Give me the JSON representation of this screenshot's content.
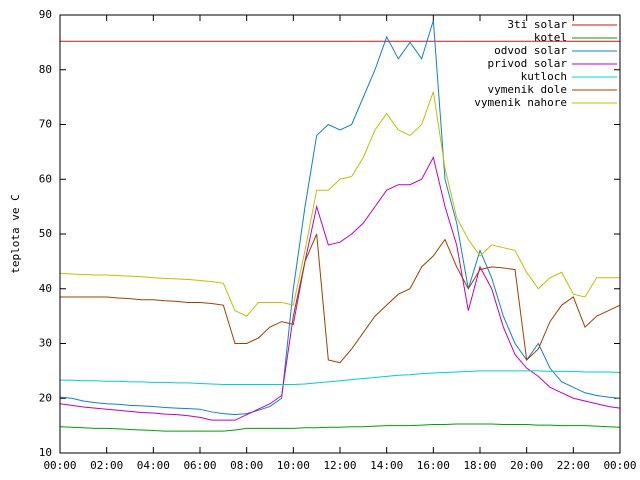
{
  "chart_data": {
    "type": "line",
    "ylabel": "teplota ve C",
    "x": [
      0,
      0.5,
      1,
      1.5,
      2,
      2.5,
      3,
      3.5,
      4,
      4.5,
      5,
      5.5,
      6,
      6.5,
      7,
      7.5,
      8,
      8.5,
      9,
      9.5,
      10,
      10.5,
      11,
      11.5,
      12,
      12.5,
      13,
      13.5,
      14,
      14.5,
      15,
      15.5,
      16,
      16.5,
      17,
      17.5,
      18,
      18.5,
      19,
      19.5,
      20,
      20.5,
      21,
      21.5,
      22,
      22.5,
      23,
      23.5,
      24
    ],
    "xlim": [
      0,
      24
    ],
    "xticks": [
      {
        "value": 0,
        "label": "00:00"
      },
      {
        "value": 2,
        "label": "02:00"
      },
      {
        "value": 4,
        "label": "04:00"
      },
      {
        "value": 6,
        "label": "06:00"
      },
      {
        "value": 8,
        "label": "08:00"
      },
      {
        "value": 10,
        "label": "10:00"
      },
      {
        "value": 12,
        "label": "12:00"
      },
      {
        "value": 14,
        "label": "14:00"
      },
      {
        "value": 16,
        "label": "16:00"
      },
      {
        "value": 18,
        "label": "18:00"
      },
      {
        "value": 20,
        "label": "20:00"
      },
      {
        "value": 22,
        "label": "22:00"
      },
      {
        "value": 24,
        "label": "00:00"
      }
    ],
    "ylim": [
      10,
      90
    ],
    "yticks": [
      10,
      20,
      30,
      40,
      50,
      60,
      70,
      80,
      90
    ],
    "legend": "top-right",
    "series": [
      {
        "name": "3ti solar",
        "color": "#c01818",
        "values": [
          85.2,
          85.2,
          85.2,
          85.2,
          85.2,
          85.2,
          85.2,
          85.2,
          85.2,
          85.2,
          85.2,
          85.2,
          85.2,
          85.2,
          85.2,
          85.2,
          85.2,
          85.2,
          85.2,
          85.2,
          85.2,
          85.2,
          85.2,
          85.2,
          85.2,
          85.2,
          85.2,
          85.2,
          85.2,
          85.2,
          85.2,
          85.2,
          85.2,
          85.2,
          85.2,
          85.2,
          85.2,
          85.2,
          85.2,
          85.2,
          85.2,
          85.2,
          85.2,
          85.2,
          85.2,
          85.2,
          85.2,
          85.2,
          85.2
        ]
      },
      {
        "name": "kotel",
        "color": "#00a000",
        "values": [
          14.8,
          14.7,
          14.6,
          14.5,
          14.5,
          14.4,
          14.3,
          14.2,
          14.1,
          14,
          14,
          14,
          14,
          14,
          14,
          14.2,
          14.5,
          14.5,
          14.5,
          14.5,
          14.5,
          14.6,
          14.6,
          14.7,
          14.7,
          14.8,
          14.8,
          14.9,
          15,
          15,
          15,
          15.1,
          15.2,
          15.2,
          15.3,
          15.3,
          15.3,
          15.3,
          15.2,
          15.2,
          15.2,
          15.1,
          15.1,
          15,
          15,
          15,
          14.9,
          14.8,
          14.7
        ]
      },
      {
        "name": "odvod solar",
        "color": "#1080d0",
        "values": [
          20.2,
          20,
          19.5,
          19.2,
          19,
          18.9,
          18.7,
          18.6,
          18.5,
          18.3,
          18.2,
          18.1,
          18,
          17.5,
          17.2,
          17,
          17.2,
          17.8,
          18.5,
          20,
          40,
          55,
          68,
          70,
          69,
          70,
          75,
          80,
          86,
          82,
          85,
          82,
          89,
          60,
          52,
          40,
          47,
          42,
          35,
          30,
          27,
          30,
          25.5,
          23,
          22,
          21,
          20.5,
          20.2,
          20
        ]
      },
      {
        "name": "privod solar",
        "color": "#c000c0",
        "values": [
          19,
          18.7,
          18.4,
          18.2,
          18,
          17.8,
          17.6,
          17.4,
          17.3,
          17.1,
          17,
          16.8,
          16.5,
          16,
          16,
          16,
          17,
          18,
          19,
          20.5,
          35,
          45,
          55,
          48,
          48.5,
          50,
          52,
          55,
          58,
          59,
          59,
          60,
          64,
          55,
          48,
          36,
          44,
          40,
          33,
          28,
          25.5,
          24,
          22,
          21,
          20,
          19.5,
          19,
          18.5,
          18.2
        ]
      },
      {
        "name": "kutloch",
        "color": "#00d0d0",
        "values": [
          23.3,
          23.3,
          23.2,
          23.2,
          23.1,
          23.1,
          23,
          23,
          22.9,
          22.9,
          22.8,
          22.8,
          22.7,
          22.6,
          22.5,
          22.5,
          22.5,
          22.5,
          22.5,
          22.5,
          22.5,
          22.6,
          22.8,
          23,
          23.2,
          23.4,
          23.6,
          23.8,
          24,
          24.2,
          24.3,
          24.5,
          24.6,
          24.7,
          24.8,
          24.9,
          25,
          25,
          25,
          25,
          25,
          25,
          24.9,
          24.9,
          24.9,
          24.8,
          24.8,
          24.8,
          24.7
        ]
      },
      {
        "name": "vymenik dole",
        "color": "#a04000",
        "values": [
          38.5,
          38.5,
          38.5,
          38.5,
          38.5,
          38.3,
          38.2,
          38,
          38,
          37.8,
          37.7,
          37.5,
          37.5,
          37.3,
          37,
          30,
          30,
          31,
          33,
          34,
          33.5,
          45,
          50,
          27,
          26.5,
          29,
          32,
          35,
          37,
          39,
          40,
          44,
          46,
          49,
          44,
          40,
          43.5,
          44,
          43.8,
          43.5,
          27,
          29,
          34,
          37,
          38.5,
          33,
          35,
          36,
          37
        ]
      },
      {
        "name": "vymenik nahore",
        "color": "#c0c000",
        "values": [
          42.8,
          42.7,
          42.6,
          42.5,
          42.5,
          42.4,
          42.3,
          42.2,
          42,
          41.9,
          41.8,
          41.7,
          41.5,
          41.3,
          41,
          36,
          35,
          37.5,
          37.5,
          37.5,
          37,
          47,
          58,
          58,
          60,
          60.5,
          64,
          69,
          72,
          69,
          68,
          70,
          76,
          62,
          53,
          49,
          46,
          48,
          47.5,
          47,
          43,
          40,
          42,
          43,
          39,
          38.5,
          42,
          42,
          42
        ]
      }
    ]
  }
}
